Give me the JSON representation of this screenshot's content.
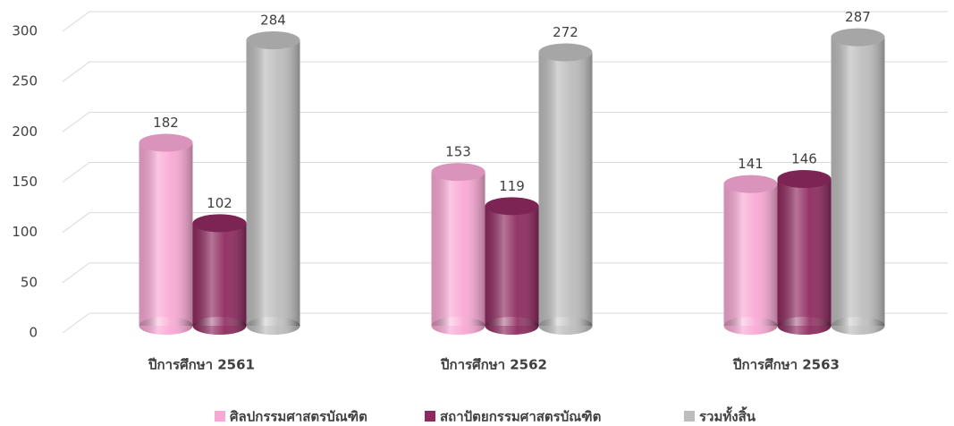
{
  "chart_data": {
    "type": "bar3d",
    "categories": [
      "ปีการศึกษา 2561",
      "ปีการศึกษา 2562",
      "ปีการศึกษา 2563"
    ],
    "series": [
      {
        "name": "ศิลปกรรมศาสตรบัณฑิต",
        "color": "#f9a8d4",
        "values": [
          182,
          153,
          141
        ]
      },
      {
        "name": "สถาปัตยกรรมศาสตรบัณฑิต",
        "color": "#8e2a5f",
        "values": [
          102,
          119,
          146
        ]
      },
      {
        "name": "รวมทั้งสิ้น",
        "color": "#bdbdbd",
        "values": [
          284,
          272,
          287
        ]
      }
    ],
    "ylim": [
      0,
      300
    ],
    "yticks": [
      0,
      50,
      100,
      150,
      200,
      250,
      300
    ],
    "grid": true
  }
}
